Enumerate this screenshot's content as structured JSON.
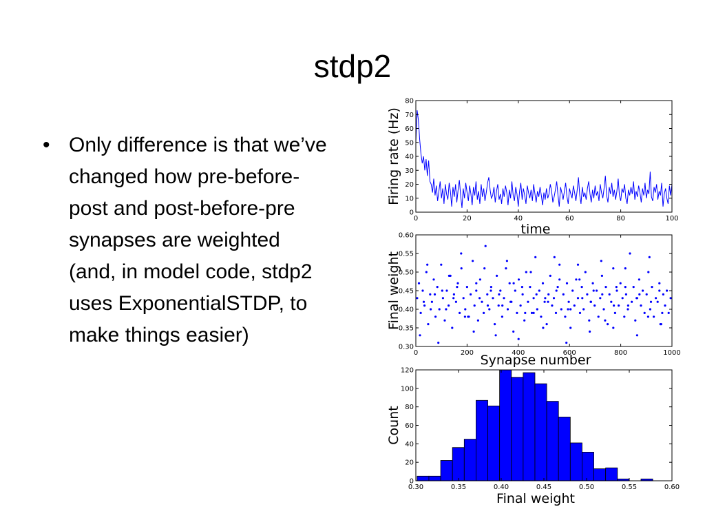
{
  "slide": {
    "title": "stdp2",
    "bullets": [
      "Only difference is that we’ve changed how pre-before-post and post-before-pre synapses are weighted (and, in model code, stdp2 uses ExponentialSTDP, to make things easier)"
    ]
  },
  "chart_data": [
    {
      "type": "line",
      "xlabel": "time",
      "ylabel": "Firing rate (Hz)",
      "xlim": [
        0,
        100
      ],
      "ylim": [
        0,
        80
      ],
      "xticks": [
        "0",
        "20",
        "40",
        "60",
        "80",
        "100"
      ],
      "yticks": [
        "0",
        "10",
        "20",
        "30",
        "40",
        "50",
        "60",
        "70",
        "80"
      ],
      "series": [
        {
          "color": "#0000ff",
          "x": [
            0,
            0.5,
            1,
            1.5,
            2,
            2.5,
            3,
            3.5,
            4,
            4.5,
            5,
            5.5,
            6,
            6.5,
            7,
            7.5,
            8,
            8.5,
            9,
            9.5,
            10,
            10.5,
            11,
            11.5,
            12,
            12.5,
            13,
            13.5,
            14,
            14.5,
            15,
            15.5,
            16,
            16.5,
            17,
            17.5,
            18,
            18.5,
            19,
            19.5,
            20,
            20.5,
            21,
            21.5,
            22,
            22.5,
            23,
            23.5,
            24,
            24.5,
            25,
            25.5,
            26,
            26.5,
            27,
            27.5,
            28,
            28.5,
            29,
            29.5,
            30,
            30.5,
            31,
            31.5,
            32,
            32.5,
            33,
            33.5,
            34,
            34.5,
            35,
            35.5,
            36,
            36.5,
            37,
            37.5,
            38,
            38.5,
            39,
            39.5,
            40,
            40.5,
            41,
            41.5,
            42,
            42.5,
            43,
            43.5,
            44,
            44.5,
            45,
            45.5,
            46,
            46.5,
            47,
            47.5,
            48,
            48.5,
            49,
            49.5,
            50,
            50.5,
            51,
            51.5,
            52,
            52.5,
            53,
            53.5,
            54,
            54.5,
            55,
            55.5,
            56,
            56.5,
            57,
            57.5,
            58,
            58.5,
            59,
            59.5,
            60,
            60.5,
            61,
            61.5,
            62,
            62.5,
            63,
            63.5,
            64,
            64.5,
            65,
            65.5,
            66,
            66.5,
            67,
            67.5,
            68,
            68.5,
            69,
            69.5,
            70,
            70.5,
            71,
            71.5,
            72,
            72.5,
            73,
            73.5,
            74,
            74.5,
            75,
            75.5,
            76,
            76.5,
            77,
            77.5,
            78,
            78.5,
            79,
            79.5,
            80,
            80.5,
            81,
            81.5,
            82,
            82.5,
            83,
            83.5,
            84,
            84.5,
            85,
            85.5,
            86,
            86.5,
            87,
            87.5,
            88,
            88.5,
            89,
            89.5,
            90,
            90.5,
            91,
            91.5,
            92,
            92.5,
            93,
            93.5,
            94,
            94.5,
            95,
            95.5,
            96,
            96.5,
            97,
            97.5,
            98,
            98.5,
            99,
            99.5,
            100
          ],
          "y": [
            50,
            73,
            66,
            52,
            42,
            35,
            40,
            30,
            38,
            26,
            37,
            22,
            20,
            14,
            24,
            12,
            19,
            8,
            15,
            22,
            10,
            17,
            6,
            20,
            13,
            9,
            21,
            15,
            4,
            18,
            11,
            20,
            7,
            16,
            23,
            12,
            3,
            17,
            10,
            21,
            14,
            8,
            19,
            13,
            5,
            18,
            12,
            22,
            9,
            15,
            6,
            20,
            11,
            17,
            8,
            14,
            21,
            25,
            16,
            10,
            12,
            18,
            7,
            15,
            20,
            9,
            13,
            6,
            17,
            11,
            19,
            14,
            5,
            16,
            10,
            22,
            12,
            8,
            18,
            13,
            4,
            15,
            21,
            9,
            17,
            12,
            6,
            19,
            14,
            10,
            16,
            8,
            20,
            13,
            7,
            15,
            11,
            18,
            12,
            5,
            14,
            9,
            17,
            10,
            13,
            20,
            15,
            7,
            11,
            16,
            22,
            12,
            4,
            18,
            14,
            9,
            15,
            21,
            11,
            6,
            17,
            13,
            10,
            19,
            14,
            8,
            16,
            25,
            12,
            6,
            18,
            11,
            14,
            9,
            17,
            22,
            13,
            7,
            16,
            10,
            19,
            12,
            15,
            8,
            20,
            14,
            10,
            17,
            26,
            12,
            7,
            18,
            13,
            21,
            11,
            16,
            9,
            15,
            24,
            12,
            8,
            17,
            14,
            20,
            10,
            6,
            16,
            12,
            18,
            13,
            22,
            9,
            15,
            11,
            19,
            14,
            7,
            17,
            12,
            21,
            10,
            16,
            13,
            29,
            11,
            8,
            18,
            14,
            20,
            9,
            15,
            12,
            21,
            4,
            13,
            17,
            10,
            6,
            19,
            12,
            20
          ]
        }
      ]
    },
    {
      "type": "scatter",
      "xlabel": "Synapse number",
      "ylabel": "Final weight",
      "xlim": [
        0,
        1000
      ],
      "ylim": [
        0.3,
        0.6
      ],
      "xticks": [
        "0",
        "200",
        "400",
        "600",
        "800",
        "1000"
      ],
      "yticks": [
        "0.30",
        "0.35",
        "0.40",
        "0.45",
        "0.50",
        "0.55",
        "0.60"
      ],
      "series": [
        {
          "color": "#0000ff",
          "x": [
            5,
            12,
            19,
            27,
            34,
            41,
            48,
            56,
            63,
            70,
            77,
            84,
            92,
            99,
            106,
            113,
            121,
            128,
            135,
            142,
            149,
            157,
            164,
            171,
            178,
            186,
            193,
            200,
            207,
            214,
            222,
            229,
            236,
            243,
            251,
            258,
            265,
            272,
            279,
            287,
            294,
            301,
            308,
            316,
            323,
            330,
            337,
            344,
            352,
            359,
            366,
            373,
            381,
            388,
            395,
            402,
            409,
            417,
            424,
            431,
            438,
            446,
            453,
            460,
            467,
            474,
            482,
            489,
            496,
            503,
            511,
            518,
            525,
            532,
            539,
            547,
            554,
            561,
            568,
            576,
            583,
            590,
            597,
            604,
            612,
            619,
            626,
            633,
            641,
            648,
            655,
            662,
            669,
            677,
            684,
            691,
            698,
            706,
            713,
            720,
            727,
            734,
            742,
            749,
            756,
            763,
            771,
            778,
            785,
            792,
            799,
            807,
            814,
            821,
            828,
            836,
            843,
            850,
            857,
            864,
            872,
            879,
            886,
            893,
            901,
            908,
            915,
            922,
            929,
            937,
            944,
            951,
            958,
            966,
            973,
            980,
            987,
            995,
            16,
            45,
            88,
            130,
            177,
            226,
            268,
            312,
            356,
            401,
            449,
            497,
            541,
            588,
            633,
            679,
            724,
            771,
            818,
            864,
            912,
            955,
            31,
            74,
            118,
            161,
            204,
            249,
            293,
            338,
            382,
            427,
            471,
            516,
            561,
            604,
            650,
            694,
            739,
            783,
            829,
            873,
            918,
            962,
            58,
            103,
            147,
            192,
            236,
            281,
            325,
            370,
            415,
            460,
            505,
            549,
            594,
            639,
            683,
            728,
            773,
            818,
            862,
            907,
            951
          ],
          "y": [
            0.43,
            0.47,
            0.39,
            0.45,
            0.41,
            0.5,
            0.36,
            0.44,
            0.42,
            0.48,
            0.38,
            0.46,
            0.4,
            0.52,
            0.43,
            0.37,
            0.45,
            0.41,
            0.49,
            0.35,
            0.44,
            0.42,
            0.47,
            0.39,
            0.51,
            0.43,
            0.4,
            0.46,
            0.38,
            0.44,
            0.53,
            0.41,
            0.45,
            0.37,
            0.48,
            0.42,
            0.39,
            0.57,
            0.44,
            0.4,
            0.46,
            0.43,
            0.36,
            0.49,
            0.41,
            0.45,
            0.38,
            0.43,
            0.51,
            0.4,
            0.47,
            0.42,
            0.34,
            0.45,
            0.39,
            0.48,
            0.41,
            0.44,
            0.37,
            0.5,
            0.42,
            0.46,
            0.39,
            0.43,
            0.54,
            0.4,
            0.45,
            0.38,
            0.47,
            0.42,
            0.36,
            0.44,
            0.49,
            0.41,
            0.43,
            0.39,
            0.46,
            0.52,
            0.4,
            0.44,
            0.38,
            0.47,
            0.42,
            0.35,
            0.45,
            0.41,
            0.48,
            0.43,
            0.39,
            0.46,
            0.4,
            0.5,
            0.44,
            0.37,
            0.42,
            0.47,
            0.41,
            0.45,
            0.38,
            0.43,
            0.49,
            0.4,
            0.46,
            0.36,
            0.44,
            0.42,
            0.51,
            0.39,
            0.45,
            0.41,
            0.47,
            0.43,
            0.38,
            0.44,
            0.4,
            0.55,
            0.42,
            0.46,
            0.37,
            0.43,
            0.48,
            0.41,
            0.45,
            0.39,
            0.44,
            0.5,
            0.4,
            0.46,
            0.38,
            0.43,
            0.42,
            0.47,
            0.36,
            0.44,
            0.41,
            0.45,
            0.39,
            0.43,
            0.33,
            0.52,
            0.31,
            0.49,
            0.55,
            0.34,
            0.51,
            0.33,
            0.53,
            0.32,
            0.5,
            0.35,
            0.54,
            0.31,
            0.52,
            0.34,
            0.53,
            0.35,
            0.51,
            0.33,
            0.54,
            0.36,
            0.42,
            0.44,
            0.4,
            0.46,
            0.38,
            0.43,
            0.45,
            0.41,
            0.47,
            0.39,
            0.44,
            0.42,
            0.48,
            0.4,
            0.43,
            0.45,
            0.37,
            0.46,
            0.41,
            0.44,
            0.42,
            0.39,
            0.4,
            0.45,
            0.43,
            0.38,
            0.47,
            0.41,
            0.44,
            0.42,
            0.46,
            0.39,
            0.43,
            0.45,
            0.4,
            0.48,
            0.42,
            0.44,
            0.41,
            0.46,
            0.43,
            0.38,
            0.45
          ]
        }
      ]
    },
    {
      "type": "bar",
      "xlabel": "Final weight",
      "ylabel": "Count",
      "xlim": [
        0.3,
        0.6
      ],
      "ylim": [
        0,
        120
      ],
      "xticks": [
        "0.30",
        "0.35",
        "0.40",
        "0.45",
        "0.50",
        "0.55",
        "0.60"
      ],
      "yticks": [
        "0",
        "20",
        "40",
        "60",
        "80",
        "100",
        "120"
      ],
      "bin_edges": [
        0.3015,
        0.3153,
        0.3291,
        0.3429,
        0.3567,
        0.3705,
        0.3843,
        0.3981,
        0.4119,
        0.4257,
        0.4395,
        0.4533,
        0.4671,
        0.4809,
        0.4947,
        0.5085,
        0.5223,
        0.5361,
        0.5499,
        0.5637,
        0.5775
      ],
      "values": [
        5,
        5,
        22,
        36,
        45,
        87,
        81,
        120,
        112,
        117,
        105,
        86,
        69,
        41,
        31,
        13,
        14,
        2,
        0,
        2
      ],
      "color": "#0000ff"
    }
  ]
}
